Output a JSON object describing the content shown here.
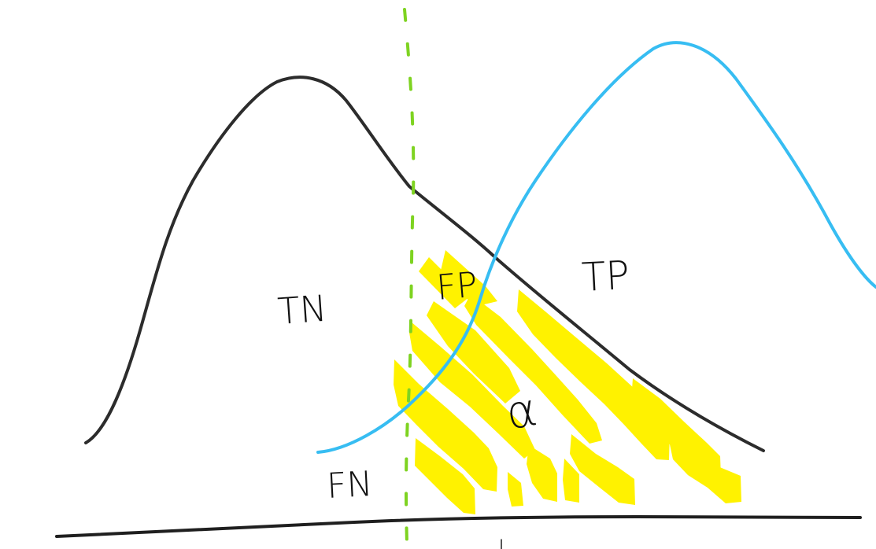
{
  "colors": {
    "background": "#ffffff",
    "negative_curve": "#2c2c2c",
    "positive_curve": "#37bdf2",
    "threshold": "#7ed321",
    "alpha_hatch": "#fff200",
    "axis": "#1f1f1f",
    "label": "#111111"
  },
  "labels": {
    "tn": "TN",
    "fp": "FP",
    "tp": "TP",
    "fn": "FN",
    "alpha": "α"
  }
}
